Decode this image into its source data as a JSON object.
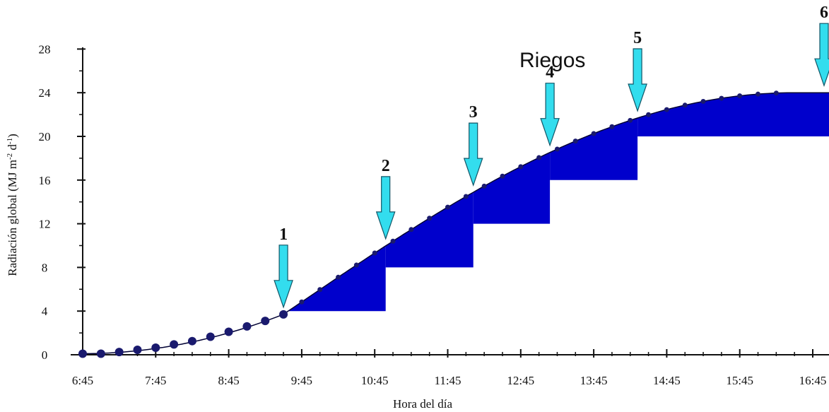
{
  "chart_data": {
    "type": "line",
    "title": "",
    "xlabel": "Hora del día",
    "ylabel_main": "Radiación global (MJ m",
    "ylabel_sup1": "-2",
    "ylabel_mid": " d",
    "ylabel_sup2": "-1",
    "ylabel_end": ")",
    "annotation": "Riegos",
    "ylim": [
      0,
      28
    ],
    "yticks": [
      "0",
      "4",
      "8",
      "12",
      "16",
      "20",
      "24",
      "28"
    ],
    "xticks": [
      "6:45",
      "7:45",
      "8:45",
      "9:45",
      "10:45",
      "11:45",
      "12:45",
      "13:45",
      "14:45",
      "15:45",
      "16:45"
    ],
    "series": [
      {
        "values_x_hours": [
          6.75,
          7.0,
          7.25,
          7.5,
          7.75,
          8.0,
          8.25,
          8.5,
          8.75,
          9.0,
          9.25,
          9.5
        ],
        "values_y": [
          0.1,
          0.1,
          0.25,
          0.45,
          0.65,
          0.95,
          1.25,
          1.65,
          2.1,
          2.6,
          3.1,
          3.7
        ]
      }
    ],
    "irrigations": [
      {
        "label": "1",
        "time_hours": 9.5,
        "threshold": 4
      },
      {
        "label": "2",
        "time_hours": 10.9,
        "threshold": 8
      },
      {
        "label": "3",
        "time_hours": 12.1,
        "threshold": 12
      },
      {
        "label": "4",
        "time_hours": 13.15,
        "threshold": 16
      },
      {
        "label": "5",
        "time_hours": 14.35,
        "threshold": 20
      },
      {
        "label": "6",
        "time_hours": 17.5,
        "threshold": 24
      }
    ],
    "colors": {
      "fill": "#0000cc",
      "arrow": "#33ddee",
      "line": "#000033",
      "marker": "#1a1a6e"
    }
  }
}
